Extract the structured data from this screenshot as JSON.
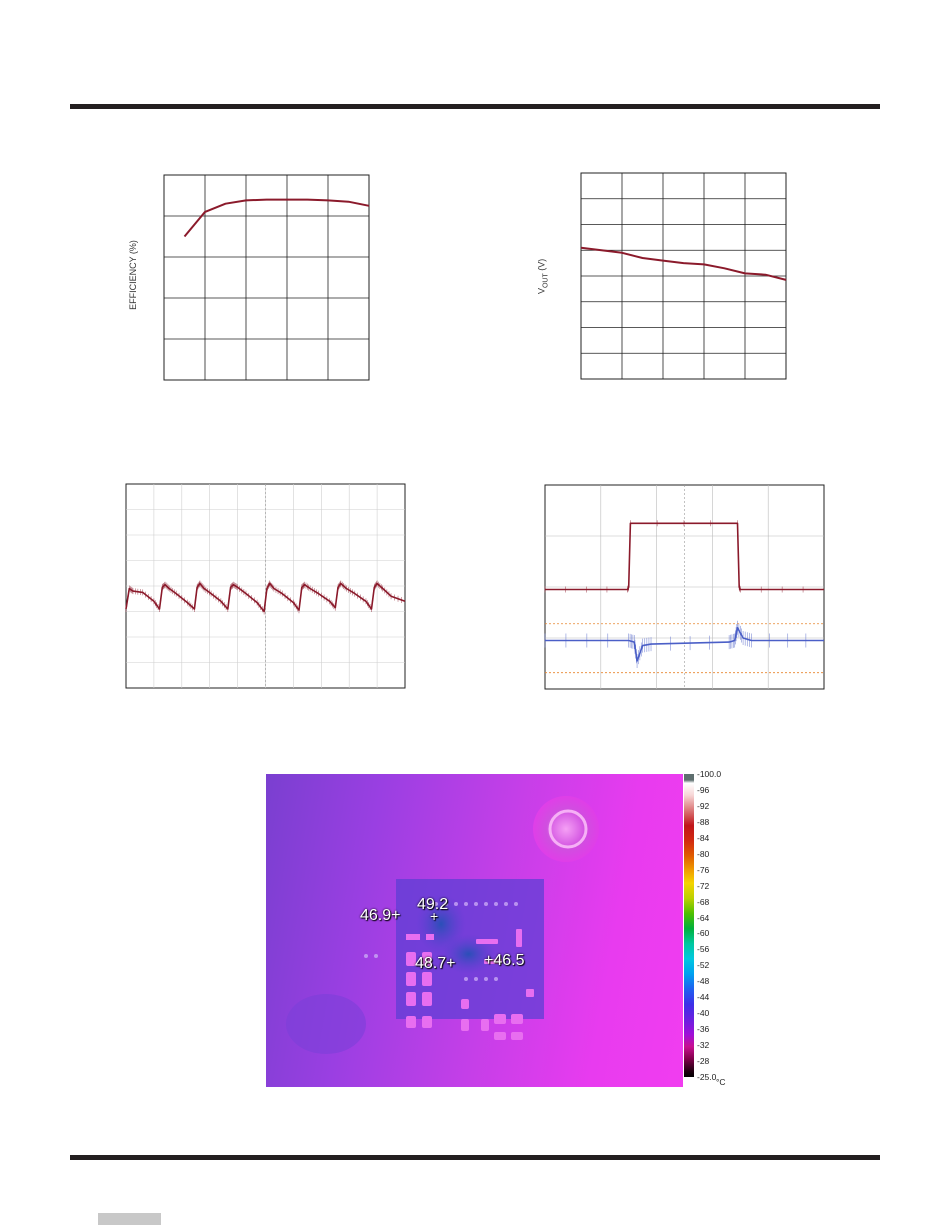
{
  "page": {
    "accent_color": "#231f20"
  },
  "chart_data": [
    {
      "type": "line",
      "title": "",
      "xlabel": "",
      "ylabel": "EFFICIENCY (%)",
      "grid": true,
      "grid_divisions": {
        "x": 5,
        "y": 5
      },
      "ylim": [
        0,
        5
      ],
      "xlim": [
        0,
        5
      ],
      "series": [
        {
          "color": "#8b1a2b",
          "x": [
            0.5,
            1.0,
            1.5,
            2.0,
            2.5,
            3.0,
            3.5,
            4.0,
            4.5,
            5.0
          ],
          "values": [
            3.5,
            4.1,
            4.3,
            4.38,
            4.4,
            4.4,
            4.4,
            4.38,
            4.35,
            4.25
          ]
        }
      ]
    },
    {
      "type": "line",
      "title": "",
      "xlabel": "",
      "ylabel": "VOUT (V)",
      "ylabel_main": "V",
      "ylabel_sub": "OUT",
      "ylabel_unit": " (V)",
      "grid": true,
      "grid_divisions": {
        "x": 5,
        "y": 8
      },
      "ylim": [
        0,
        8
      ],
      "xlim": [
        0,
        5
      ],
      "series": [
        {
          "color": "#8b1a2b",
          "x": [
            0,
            0.5,
            1.0,
            1.5,
            2.0,
            2.5,
            3.0,
            3.5,
            4.0,
            4.5,
            5.0
          ],
          "values": [
            5.1,
            5.0,
            4.9,
            4.7,
            4.6,
            4.5,
            4.45,
            4.3,
            4.1,
            4.05,
            3.85
          ]
        }
      ]
    },
    {
      "type": "line",
      "title": "",
      "subtype": "oscilloscope",
      "grid": true,
      "grid_divisions": {
        "x": 10,
        "y": 8
      },
      "ylim": [
        0,
        8
      ],
      "xlim": [
        0,
        10
      ],
      "series": [
        {
          "color": "#8b1a2b",
          "description_free": true,
          "x": [
            0,
            0.12,
            0.25,
            0.6,
            1.0,
            1.2,
            1.3,
            1.4,
            1.55,
            1.8,
            2.2,
            2.45,
            2.55,
            2.65,
            2.8,
            3.05,
            3.4,
            3.65,
            3.75,
            3.85,
            4.0,
            4.3,
            4.7,
            4.95,
            5.05,
            5.15,
            5.3,
            5.6,
            6.0,
            6.2,
            6.3,
            6.4,
            6.6,
            6.9,
            7.3,
            7.5,
            7.6,
            7.7,
            7.9,
            8.2,
            8.6,
            8.8,
            8.9,
            9.0,
            9.2,
            9.5,
            10.0
          ],
          "values": [
            3.1,
            3.9,
            3.8,
            3.75,
            3.4,
            3.1,
            3.95,
            4.05,
            3.9,
            3.7,
            3.35,
            3.1,
            3.95,
            4.1,
            3.9,
            3.7,
            3.4,
            3.1,
            3.95,
            4.05,
            3.95,
            3.7,
            3.35,
            3.0,
            3.9,
            4.1,
            3.9,
            3.7,
            3.35,
            3.05,
            3.95,
            4.05,
            3.9,
            3.7,
            3.4,
            3.15,
            3.95,
            4.1,
            3.9,
            3.7,
            3.4,
            3.1,
            3.95,
            4.1,
            3.9,
            3.6,
            3.4
          ]
        }
      ]
    },
    {
      "type": "line",
      "title": "",
      "subtype": "oscilloscope",
      "grid": true,
      "grid_divisions": {
        "x": 5,
        "y": 4
      },
      "ylim": [
        0,
        4
      ],
      "xlim": [
        0,
        5
      ],
      "series": [
        {
          "color": "#8b1a2b",
          "x": [
            0,
            1.48,
            1.5,
            1.53,
            3.45,
            3.48,
            3.5,
            5.0
          ],
          "values": [
            1.95,
            1.95,
            2.0,
            3.25,
            3.25,
            2.0,
            1.95,
            1.95
          ]
        },
        {
          "color": "#4b5fc7",
          "x": [
            0,
            1.5,
            1.6,
            1.65,
            1.75,
            1.9,
            3.3,
            3.4,
            3.45,
            3.55,
            3.7,
            5.0
          ],
          "values": [
            0.95,
            0.95,
            0.92,
            0.55,
            0.85,
            0.88,
            0.92,
            0.95,
            1.2,
            1.0,
            0.95,
            0.95
          ]
        }
      ]
    }
  ],
  "thermal": {
    "readouts": [
      {
        "label": "46.9+"
      },
      {
        "label": "49.2"
      },
      {
        "label": "48.7+"
      },
      {
        "label": "+46.5"
      }
    ],
    "scale_labels": [
      "100.0",
      "96",
      "92",
      "88",
      "84",
      "80",
      "76",
      "72",
      "68",
      "64",
      "60",
      "56",
      "52",
      "48",
      "44",
      "40",
      "36",
      "32",
      "28",
      "25.0"
    ],
    "unit": "°C"
  }
}
